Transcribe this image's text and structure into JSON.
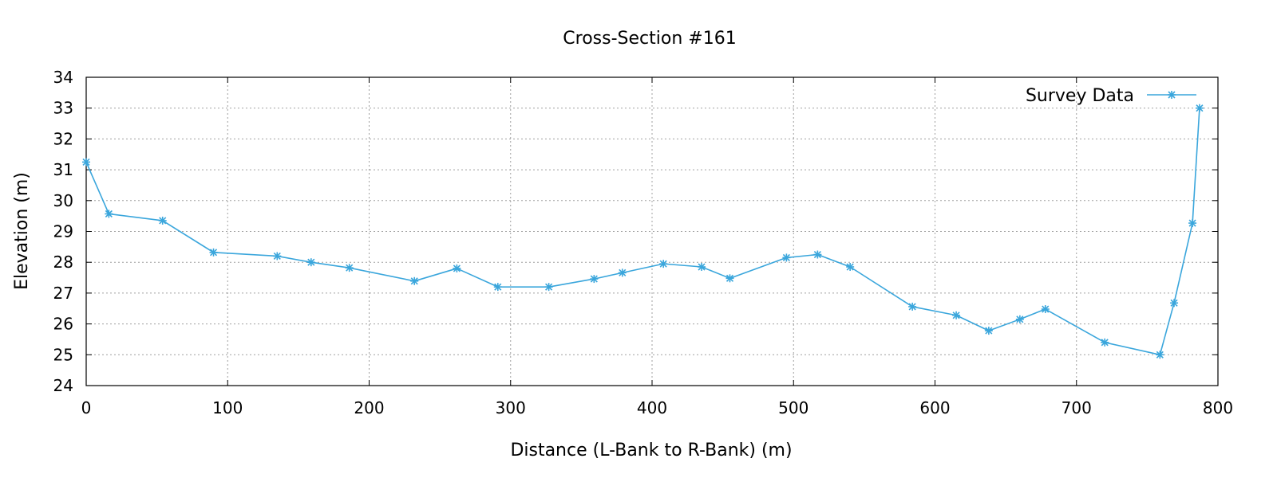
{
  "chart_data": {
    "type": "line",
    "title": "Cross-Section #161",
    "xlabel": "Distance (L-Bank to R-Bank) (m)",
    "ylabel": "Elevation (m)",
    "xlim": [
      0,
      800
    ],
    "ylim": [
      24,
      34
    ],
    "x_ticks": [
      "0",
      "100",
      "200",
      "300",
      "400",
      "500",
      "600",
      "700",
      "800"
    ],
    "y_ticks": [
      "24",
      "25",
      "26",
      "27",
      "28",
      "29",
      "30",
      "31",
      "32",
      "33",
      "34"
    ],
    "grid": true,
    "legend_position": "top-right",
    "series": [
      {
        "name": "Survey Data",
        "color": "#3aa6dc",
        "marker": "asterisk",
        "x": [
          0,
          16,
          54,
          90,
          135,
          159,
          186,
          232,
          262,
          291,
          327,
          359,
          379,
          408,
          435,
          455,
          495,
          517,
          540,
          584,
          615,
          638,
          660,
          678,
          720,
          759,
          769,
          782,
          787
        ],
        "y": [
          31.25,
          29.57,
          29.35,
          28.32,
          28.2,
          28.0,
          27.82,
          27.39,
          27.8,
          27.2,
          27.2,
          27.46,
          27.66,
          27.95,
          27.85,
          27.48,
          28.15,
          28.25,
          27.85,
          26.56,
          26.28,
          25.78,
          26.15,
          26.48,
          25.4,
          25.0,
          26.68,
          29.27,
          33.0
        ]
      }
    ]
  }
}
